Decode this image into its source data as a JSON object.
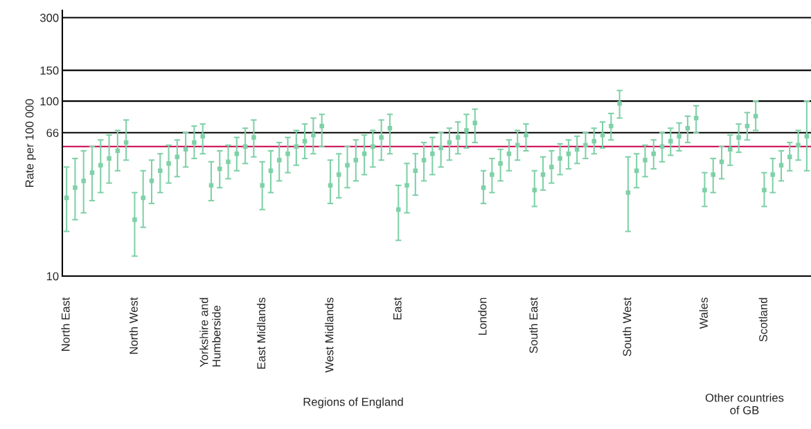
{
  "chart_data": {
    "type": "scatter",
    "ylabel": "Rate per 100 000",
    "log": "y",
    "ylim": [
      10,
      330
    ],
    "yticks": [
      10,
      66,
      100,
      150,
      300
    ],
    "grid": "y",
    "marker": "square",
    "categories": [
      "North East",
      null,
      null,
      null,
      null,
      null,
      null,
      null,
      "North West",
      null,
      null,
      null,
      null,
      null,
      null,
      null,
      null,
      "Yorkshire and\nHumberside",
      null,
      null,
      null,
      null,
      null,
      "East Midlands",
      null,
      null,
      null,
      null,
      null,
      null,
      null,
      "West Midlands",
      null,
      null,
      null,
      null,
      null,
      null,
      null,
      "East",
      null,
      null,
      null,
      null,
      null,
      null,
      null,
      null,
      null,
      "London",
      null,
      null,
      null,
      null,
      null,
      "South East",
      null,
      null,
      null,
      null,
      null,
      null,
      null,
      null,
      null,
      null,
      "South West",
      null,
      null,
      null,
      null,
      null,
      null,
      null,
      null,
      "Wales",
      null,
      null,
      null,
      null,
      null,
      null,
      "Scotland",
      null,
      null,
      null,
      null,
      null
    ],
    "ref_lines": [
      {
        "axis": "y",
        "value": 55,
        "color": "#c8004b"
      }
    ],
    "annotations": [
      "Regions of England",
      "Other countries\nof GB"
    ],
    "series": [
      {
        "color": "#7fd1a7",
        "values": [
          28,
          32,
          35,
          39,
          43,
          47,
          52,
          58,
          21,
          28,
          35,
          40,
          44,
          48,
          53,
          58,
          63,
          33,
          41,
          45,
          50,
          55,
          62,
          33,
          40,
          46,
          50,
          55,
          59,
          64,
          72,
          33,
          38,
          43,
          46,
          50,
          55,
          62,
          70,
          24,
          33,
          40,
          46,
          50,
          54,
          58,
          62,
          68,
          75,
          32,
          38,
          44,
          50,
          56,
          64,
          31,
          38,
          42,
          47,
          50,
          53,
          56,
          59,
          64,
          72,
          97,
          30,
          40,
          46,
          50,
          55,
          59,
          63,
          70,
          80,
          31,
          38,
          45,
          53,
          62,
          72,
          82,
          31,
          38,
          43,
          48,
          56,
          63
        ],
        "errors": [
          [
            18,
            42
          ],
          [
            21,
            47
          ],
          [
            23,
            52
          ],
          [
            27,
            55
          ],
          [
            30,
            60
          ],
          [
            34,
            64
          ],
          [
            40,
            68
          ],
          [
            46,
            78
          ],
          [
            13,
            30
          ],
          [
            19,
            40
          ],
          [
            26,
            46
          ],
          [
            30,
            50
          ],
          [
            34,
            56
          ],
          [
            37,
            60
          ],
          [
            42,
            66
          ],
          [
            47,
            72
          ],
          [
            50,
            74
          ],
          [
            27,
            45
          ],
          [
            32,
            52
          ],
          [
            36,
            56
          ],
          [
            40,
            62
          ],
          [
            44,
            70
          ],
          [
            48,
            78
          ],
          [
            24,
            45
          ],
          [
            30,
            52
          ],
          [
            35,
            58
          ],
          [
            39,
            62
          ],
          [
            43,
            68
          ],
          [
            47,
            74
          ],
          [
            50,
            80
          ],
          [
            55,
            84
          ],
          [
            26,
            46
          ],
          [
            28,
            50
          ],
          [
            32,
            55
          ],
          [
            35,
            60
          ],
          [
            38,
            64
          ],
          [
            42,
            68
          ],
          [
            46,
            78
          ],
          [
            50,
            84
          ],
          [
            16,
            33
          ],
          [
            23,
            44
          ],
          [
            29,
            50
          ],
          [
            35,
            58
          ],
          [
            38,
            62
          ],
          [
            42,
            66
          ],
          [
            46,
            70
          ],
          [
            50,
            76
          ],
          [
            54,
            84
          ],
          [
            58,
            90
          ],
          [
            26,
            40
          ],
          [
            30,
            47
          ],
          [
            35,
            53
          ],
          [
            40,
            60
          ],
          [
            46,
            68
          ],
          [
            52,
            74
          ],
          [
            25,
            40
          ],
          [
            31,
            48
          ],
          [
            34,
            52
          ],
          [
            38,
            57
          ],
          [
            41,
            60
          ],
          [
            44,
            63
          ],
          [
            47,
            66
          ],
          [
            50,
            70
          ],
          [
            54,
            76
          ],
          [
            60,
            85
          ],
          [
            80,
            115
          ],
          [
            18,
            48
          ],
          [
            32,
            50
          ],
          [
            37,
            56
          ],
          [
            41,
            60
          ],
          [
            45,
            66
          ],
          [
            49,
            70
          ],
          [
            52,
            75
          ],
          [
            58,
            82
          ],
          [
            66,
            94
          ],
          [
            25,
            39
          ],
          [
            30,
            47
          ],
          [
            36,
            55
          ],
          [
            43,
            64
          ],
          [
            51,
            74
          ],
          [
            60,
            86
          ],
          [
            68,
            100
          ],
          [
            25,
            39
          ],
          [
            30,
            47
          ],
          [
            35,
            52
          ],
          [
            40,
            58
          ],
          [
            46,
            68
          ],
          [
            40,
            100
          ]
        ]
      }
    ]
  }
}
